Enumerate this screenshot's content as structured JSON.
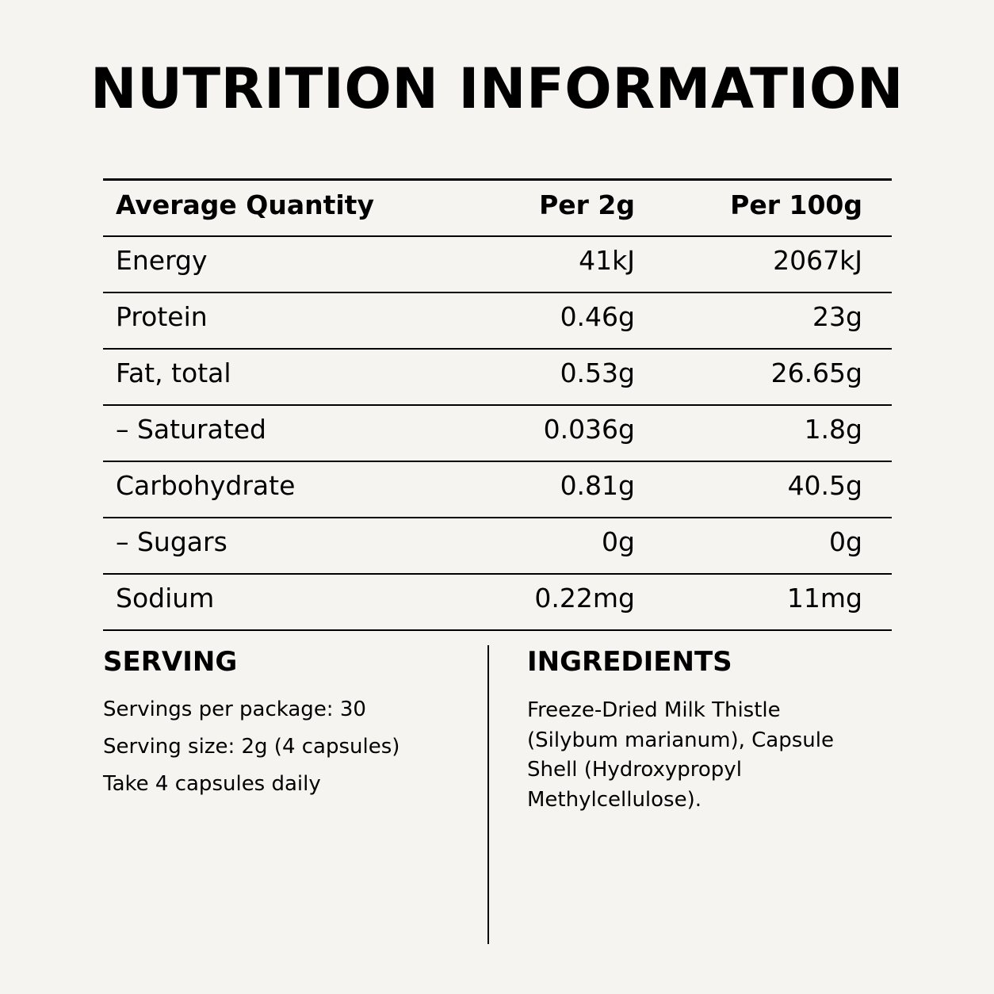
{
  "title": "NUTRITION INFORMATION",
  "table": {
    "headers": [
      "Average Quantity",
      "Per 2g",
      "Per 100g"
    ],
    "rows": [
      [
        "Energy",
        "41kJ",
        "2067kJ"
      ],
      [
        "Protein",
        "0.46g",
        "23g"
      ],
      [
        "Fat, total",
        "0.53g",
        "26.65g"
      ],
      [
        "– Saturated",
        "0.036g",
        "1.8g"
      ],
      [
        "Carbohydrate",
        "0.81g",
        "40.5g"
      ],
      [
        "– Sugars",
        "0g",
        "0g"
      ],
      [
        "Sodium",
        "0.22mg",
        "11mg"
      ]
    ]
  },
  "serving": {
    "title": "SERVING",
    "lines": [
      "Servings per package: 30",
      "Serving size: 2g (4 capsules)",
      "Take 4 capsules daily"
    ]
  },
  "ingredients": {
    "title": "INGREDIENTS",
    "text": "Freeze-Dried Milk Thistle (Silybum marianum), Capsule Shell (Hydroxypropyl Methylcellulose)."
  }
}
